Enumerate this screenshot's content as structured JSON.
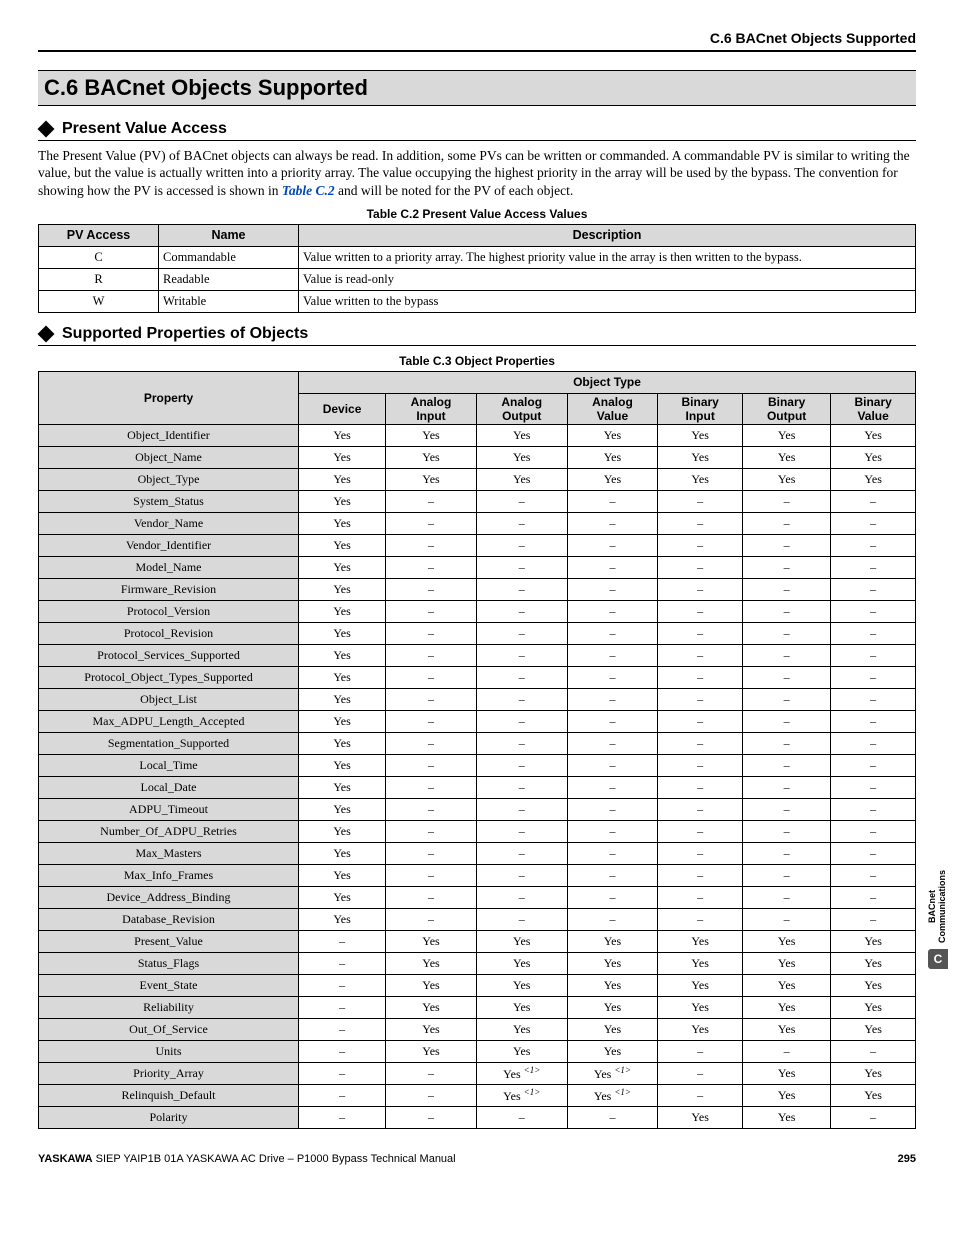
{
  "running_head": "C.6 BACnet Objects Supported",
  "section_title": "C.6  BACnet Objects Supported",
  "sub1": "Present Value Access",
  "para1_a": "The Present Value (PV) of BACnet objects can always be read. In addition, some PVs can be written or commanded. A commandable PV is similar to writing the value, but the value is actually written into a priority array. The value occupying the highest priority in the array will be used by the bypass. The convention for showing how the PV is accessed is shown in ",
  "para1_link": "Table C.2",
  "para1_b": " and will be noted for the PV of each object.",
  "table_c2": {
    "caption": "Table C.2  Present Value Access Values",
    "headers": [
      "PV Access",
      "Name",
      "Description"
    ],
    "rows": [
      [
        "C",
        "Commandable",
        "Value written to a priority array. The highest priority value in the array is then written to the bypass."
      ],
      [
        "R",
        "Readable",
        "Value is read-only"
      ],
      [
        "W",
        "Writable",
        "Value written to the bypass"
      ]
    ]
  },
  "sub2": "Supported Properties of Objects",
  "table_c3": {
    "caption": "Table C.3  Object Properties",
    "header_group": "Object Type",
    "col_property": "Property",
    "cols": [
      "Device",
      "Analog Input",
      "Analog Output",
      "Analog Value",
      "Binary Input",
      "Binary Output",
      "Binary Value"
    ],
    "dash": "–",
    "note_sup": "<1>",
    "rows": [
      {
        "p": "Object_Identifier",
        "v": [
          "Yes",
          "Yes",
          "Yes",
          "Yes",
          "Yes",
          "Yes",
          "Yes"
        ]
      },
      {
        "p": "Object_Name",
        "v": [
          "Yes",
          "Yes",
          "Yes",
          "Yes",
          "Yes",
          "Yes",
          "Yes"
        ]
      },
      {
        "p": "Object_Type",
        "v": [
          "Yes",
          "Yes",
          "Yes",
          "Yes",
          "Yes",
          "Yes",
          "Yes"
        ]
      },
      {
        "p": "System_Status",
        "v": [
          "Yes",
          "–",
          "–",
          "–",
          "–",
          "–",
          "–"
        ]
      },
      {
        "p": "Vendor_Name",
        "v": [
          "Yes",
          "–",
          "–",
          "–",
          "–",
          "–",
          "–"
        ]
      },
      {
        "p": "Vendor_Identifier",
        "v": [
          "Yes",
          "–",
          "–",
          "–",
          "–",
          "–",
          "–"
        ]
      },
      {
        "p": "Model_Name",
        "v": [
          "Yes",
          "–",
          "–",
          "–",
          "–",
          "–",
          "–"
        ]
      },
      {
        "p": "Firmware_Revision",
        "v": [
          "Yes",
          "–",
          "–",
          "–",
          "–",
          "–",
          "–"
        ]
      },
      {
        "p": "Protocol_Version",
        "v": [
          "Yes",
          "–",
          "–",
          "–",
          "–",
          "–",
          "–"
        ]
      },
      {
        "p": "Protocol_Revision",
        "v": [
          "Yes",
          "–",
          "–",
          "–",
          "–",
          "–",
          "–"
        ]
      },
      {
        "p": "Protocol_Services_Supported",
        "v": [
          "Yes",
          "–",
          "–",
          "–",
          "–",
          "–",
          "–"
        ]
      },
      {
        "p": "Protocol_Object_Types_Supported",
        "v": [
          "Yes",
          "–",
          "–",
          "–",
          "–",
          "–",
          "–"
        ]
      },
      {
        "p": "Object_List",
        "v": [
          "Yes",
          "–",
          "–",
          "–",
          "–",
          "–",
          "–"
        ]
      },
      {
        "p": "Max_ADPU_Length_Accepted",
        "v": [
          "Yes",
          "–",
          "–",
          "–",
          "–",
          "–",
          "–"
        ]
      },
      {
        "p": "Segmentation_Supported",
        "v": [
          "Yes",
          "–",
          "–",
          "–",
          "–",
          "–",
          "–"
        ]
      },
      {
        "p": "Local_Time",
        "v": [
          "Yes",
          "–",
          "–",
          "–",
          "–",
          "–",
          "–"
        ]
      },
      {
        "p": "Local_Date",
        "v": [
          "Yes",
          "–",
          "–",
          "–",
          "–",
          "–",
          "–"
        ]
      },
      {
        "p": "ADPU_Timeout",
        "v": [
          "Yes",
          "–",
          "–",
          "–",
          "–",
          "–",
          "–"
        ]
      },
      {
        "p": "Number_Of_ADPU_Retries",
        "v": [
          "Yes",
          "–",
          "–",
          "–",
          "–",
          "–",
          "–"
        ]
      },
      {
        "p": "Max_Masters",
        "v": [
          "Yes",
          "–",
          "–",
          "–",
          "–",
          "–",
          "–"
        ]
      },
      {
        "p": "Max_Info_Frames",
        "v": [
          "Yes",
          "–",
          "–",
          "–",
          "–",
          "–",
          "–"
        ]
      },
      {
        "p": "Device_Address_Binding",
        "v": [
          "Yes",
          "–",
          "–",
          "–",
          "–",
          "–",
          "–"
        ]
      },
      {
        "p": "Database_Revision",
        "v": [
          "Yes",
          "–",
          "–",
          "–",
          "–",
          "–",
          "–"
        ]
      },
      {
        "p": "Present_Value",
        "v": [
          "–",
          "Yes",
          "Yes",
          "Yes",
          "Yes",
          "Yes",
          "Yes"
        ]
      },
      {
        "p": "Status_Flags",
        "v": [
          "–",
          "Yes",
          "Yes",
          "Yes",
          "Yes",
          "Yes",
          "Yes"
        ]
      },
      {
        "p": "Event_State",
        "v": [
          "–",
          "Yes",
          "Yes",
          "Yes",
          "Yes",
          "Yes",
          "Yes"
        ]
      },
      {
        "p": "Reliability",
        "v": [
          "–",
          "Yes",
          "Yes",
          "Yes",
          "Yes",
          "Yes",
          "Yes"
        ]
      },
      {
        "p": "Out_Of_Service",
        "v": [
          "–",
          "Yes",
          "Yes",
          "Yes",
          "Yes",
          "Yes",
          "Yes"
        ]
      },
      {
        "p": "Units",
        "v": [
          "–",
          "Yes",
          "Yes",
          "Yes",
          "–",
          "–",
          "–"
        ]
      },
      {
        "p": "Priority_Array",
        "v": [
          "–",
          "–",
          "Yes*",
          "Yes*",
          "–",
          "Yes",
          "Yes"
        ]
      },
      {
        "p": "Relinquish_Default",
        "v": [
          "–",
          "–",
          "Yes*",
          "Yes*",
          "–",
          "Yes",
          "Yes"
        ]
      },
      {
        "p": "Polarity",
        "v": [
          "–",
          "–",
          "–",
          "–",
          "Yes",
          "Yes",
          "–"
        ]
      }
    ]
  },
  "footer_left_bold": "YASKAWA",
  "footer_left_rest": " SIEP YAIP1B 01A YASKAWA AC Drive – P1000 Bypass Technical Manual",
  "footer_page": "295",
  "side_label_1": "BACnet",
  "side_label_2": "Communications",
  "side_badge": "C"
}
